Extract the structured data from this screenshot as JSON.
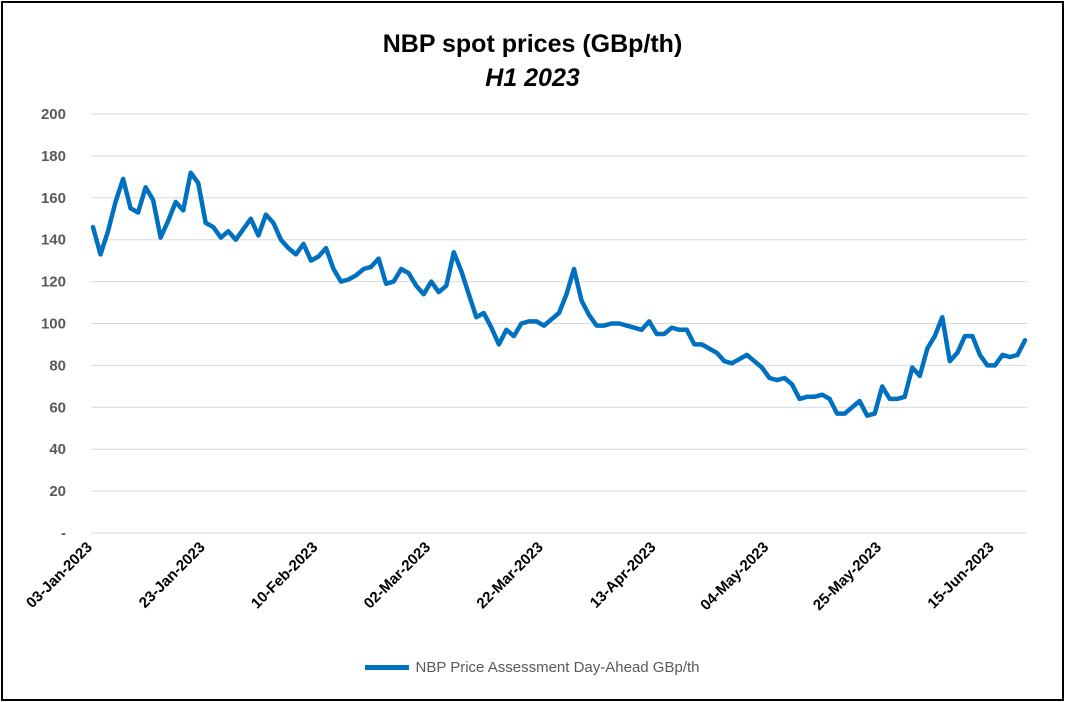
{
  "title": "NBP spot prices (GBp/th)",
  "subtitle": "H1 2023",
  "chart_data": {
    "type": "line",
    "title": "NBP spot prices (GBp/th)",
    "subtitle": "H1 2023",
    "xlabel": "",
    "ylabel": "",
    "ylim": [
      0,
      200
    ],
    "yticks": [
      0,
      20,
      40,
      60,
      80,
      100,
      120,
      140,
      160,
      180,
      200
    ],
    "ytick_labels": [
      "-",
      "20",
      "40",
      "60",
      "80",
      "100",
      "120",
      "140",
      "160",
      "180",
      "200"
    ],
    "xtick_labels": [
      "03-Jan-2023",
      "23-Jan-2023",
      "10-Feb-2023",
      "02-Mar-2023",
      "22-Mar-2023",
      "13-Apr-2023",
      "04-May-2023",
      "25-May-2023",
      "15-Jun-2023"
    ],
    "grid": true,
    "legend_position": "bottom",
    "color": "#0070C0",
    "series": [
      {
        "name": "NBP Price Assessment Day-Ahead GBp/th",
        "values": [
          146,
          133,
          144,
          158,
          169,
          155,
          153,
          165,
          159,
          141,
          149,
          158,
          154,
          172,
          167,
          148,
          146,
          141,
          144,
          140,
          145,
          150,
          142,
          152,
          148,
          140,
          136,
          133,
          138,
          130,
          132,
          136,
          126,
          120,
          121,
          123,
          126,
          127,
          131,
          119,
          120,
          126,
          124,
          118,
          114,
          120,
          115,
          118,
          134,
          125,
          114,
          103,
          105,
          98,
          90,
          97,
          94,
          100,
          101,
          101,
          99,
          102,
          105,
          114,
          126,
          111,
          104,
          99,
          99,
          100,
          100,
          99,
          98,
          97,
          101,
          95,
          95,
          98,
          97,
          97,
          90,
          90,
          88,
          86,
          82,
          81,
          83,
          85,
          82,
          79,
          74,
          73,
          74,
          71,
          64,
          65,
          65,
          66,
          64,
          57,
          57,
          60,
          63,
          56,
          57,
          70,
          64,
          64,
          65,
          79,
          75,
          88,
          94,
          103,
          82,
          86,
          94,
          94,
          85,
          80,
          80,
          85,
          84,
          85,
          92
        ]
      }
    ]
  }
}
